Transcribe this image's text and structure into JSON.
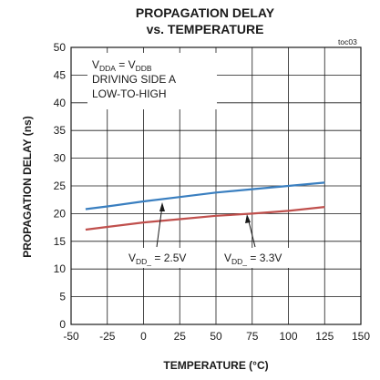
{
  "chart_data": {
    "type": "line",
    "title": "PROPAGATION DELAY",
    "subtitle": "vs. TEMPERATURE",
    "tag": "toc03",
    "xlabel": "TEMPERATURE (°C)",
    "ylabel": "PROPAGATION DELAY (ns)",
    "xlim": [
      -50,
      150
    ],
    "ylim": [
      0,
      50
    ],
    "x_ticks": [
      -50,
      -25,
      0,
      25,
      50,
      75,
      100,
      125,
      150
    ],
    "y_ticks": [
      0,
      5,
      10,
      15,
      20,
      25,
      30,
      35,
      40,
      45,
      50
    ],
    "grid": true,
    "conditions": {
      "line1": {
        "main": "V",
        "sub1": "DDA",
        "mid": " = V",
        "sub2": "DDB"
      },
      "line2": "DRIVING SIDE A",
      "line3": "LOW-TO-HIGH"
    },
    "series": [
      {
        "label_main": "V",
        "label_sub": "DD_",
        "label_value": " = 2.5V",
        "color": "#3a7fc0",
        "x": [
          -40,
          -25,
          0,
          25,
          50,
          75,
          100,
          125
        ],
        "y": [
          20.8,
          21.3,
          22.2,
          23.0,
          23.8,
          24.4,
          25.0,
          25.6
        ]
      },
      {
        "label_main": "V",
        "label_sub": "DD_",
        "label_value": " = 3.3V",
        "color": "#c0504d",
        "x": [
          -40,
          -25,
          0,
          25,
          50,
          75,
          100,
          125
        ],
        "y": [
          17.1,
          17.6,
          18.4,
          19.0,
          19.6,
          20.0,
          20.5,
          21.2
        ]
      }
    ]
  }
}
